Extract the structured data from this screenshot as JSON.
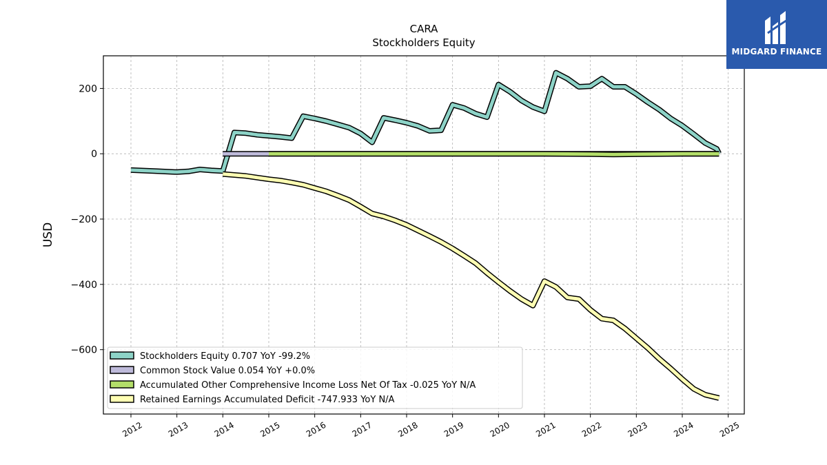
{
  "chart_data": {
    "type": "line",
    "title": "CARA",
    "subtitle": "Stockholders  Equity",
    "xlabel": "",
    "ylabel": "USD",
    "xlim": [
      2011.4,
      2025.35
    ],
    "ylim": [
      -797,
      300
    ],
    "yticks": [
      200,
      0,
      -200,
      -400,
      -600
    ],
    "ytick_labels": [
      "200",
      "0",
      "−200",
      "−400",
      "−600"
    ],
    "xticks": [
      2012,
      2013,
      2014,
      2015,
      2016,
      2017,
      2018,
      2019,
      2020,
      2021,
      2022,
      2023,
      2024,
      2025
    ],
    "xtick_labels": [
      "2012",
      "2013",
      "2014",
      "2015",
      "2016",
      "2017",
      "2018",
      "2019",
      "2020",
      "2021",
      "2022",
      "2023",
      "2024",
      "2025"
    ],
    "grid": true,
    "legend_position": "lower-left",
    "series": [
      {
        "name": "Stockholders Equity",
        "legend_label": "Stockholders Equity  0.707 YoY -99.2%",
        "color": "#8dd3c7",
        "points": [
          [
            2012.0,
            -50
          ],
          [
            2012.5,
            -53
          ],
          [
            2013.0,
            -56
          ],
          [
            2013.25,
            -54
          ],
          [
            2013.5,
            -48
          ],
          [
            2013.75,
            -51
          ],
          [
            2014.0,
            -53
          ],
          [
            2014.25,
            65
          ],
          [
            2014.5,
            63
          ],
          [
            2014.75,
            58
          ],
          [
            2015.0,
            55
          ],
          [
            2015.25,
            52
          ],
          [
            2015.5,
            48
          ],
          [
            2015.75,
            115
          ],
          [
            2016.0,
            108
          ],
          [
            2016.25,
            100
          ],
          [
            2016.5,
            90
          ],
          [
            2016.75,
            80
          ],
          [
            2017.0,
            62
          ],
          [
            2017.25,
            35
          ],
          [
            2017.5,
            110
          ],
          [
            2017.75,
            103
          ],
          [
            2018.0,
            95
          ],
          [
            2018.25,
            85
          ],
          [
            2018.5,
            70
          ],
          [
            2018.75,
            72
          ],
          [
            2019.0,
            150
          ],
          [
            2019.25,
            140
          ],
          [
            2019.5,
            123
          ],
          [
            2019.75,
            112
          ],
          [
            2020.0,
            212
          ],
          [
            2020.25,
            190
          ],
          [
            2020.5,
            163
          ],
          [
            2020.75,
            143
          ],
          [
            2021.0,
            130
          ],
          [
            2021.25,
            248
          ],
          [
            2021.5,
            230
          ],
          [
            2021.75,
            205
          ],
          [
            2022.0,
            207
          ],
          [
            2022.25,
            230
          ],
          [
            2022.5,
            205
          ],
          [
            2022.75,
            205
          ],
          [
            2023.0,
            183
          ],
          [
            2023.25,
            158
          ],
          [
            2023.5,
            135
          ],
          [
            2023.75,
            108
          ],
          [
            2024.0,
            86
          ],
          [
            2024.25,
            60
          ],
          [
            2024.5,
            33
          ],
          [
            2024.75,
            15
          ],
          [
            2024.8,
            0.707
          ]
        ]
      },
      {
        "name": "Common Stock Value",
        "legend_label": "Common Stock Value  0.054 YoY +0.0%",
        "color": "#bebada",
        "points": [
          [
            2014.0,
            0.054
          ],
          [
            2024.8,
            0.054
          ]
        ]
      },
      {
        "name": "Accumulated Other Comprehensive Income Loss Net Of Tax",
        "legend_label": "Accumulated Other Comprehensive Income Loss Net Of Tax  -0.025 YoY N/A",
        "color": "#b3de69",
        "points": [
          [
            2015.0,
            0
          ],
          [
            2019.0,
            0
          ],
          [
            2020.0,
            0
          ],
          [
            2021.0,
            -0.3
          ],
          [
            2022.0,
            -1
          ],
          [
            2022.5,
            -2
          ],
          [
            2023.0,
            -1.5
          ],
          [
            2023.5,
            -0.8
          ],
          [
            2024.0,
            -0.3
          ],
          [
            2024.8,
            -0.025
          ]
        ]
      },
      {
        "name": "Retained Earnings Accumulated Deficit",
        "legend_label": "Retained Earnings Accumulated Deficit  -747.933 YoY N/A",
        "color": "#ffffb3",
        "points": [
          [
            2014.0,
            -62
          ],
          [
            2014.25,
            -65
          ],
          [
            2014.5,
            -68
          ],
          [
            2014.75,
            -73
          ],
          [
            2015.0,
            -78
          ],
          [
            2015.25,
            -82
          ],
          [
            2015.5,
            -88
          ],
          [
            2015.75,
            -95
          ],
          [
            2016.0,
            -105
          ],
          [
            2016.25,
            -115
          ],
          [
            2016.5,
            -128
          ],
          [
            2016.75,
            -142
          ],
          [
            2017.0,
            -162
          ],
          [
            2017.25,
            -183
          ],
          [
            2017.5,
            -192
          ],
          [
            2017.75,
            -204
          ],
          [
            2018.0,
            -218
          ],
          [
            2018.25,
            -235
          ],
          [
            2018.5,
            -252
          ],
          [
            2018.75,
            -270
          ],
          [
            2019.0,
            -290
          ],
          [
            2019.25,
            -312
          ],
          [
            2019.5,
            -335
          ],
          [
            2019.75,
            -365
          ],
          [
            2020.0,
            -393
          ],
          [
            2020.25,
            -420
          ],
          [
            2020.5,
            -445
          ],
          [
            2020.75,
            -465
          ],
          [
            2021.0,
            -390
          ],
          [
            2021.25,
            -408
          ],
          [
            2021.5,
            -440
          ],
          [
            2021.75,
            -445
          ],
          [
            2022.0,
            -478
          ],
          [
            2022.25,
            -505
          ],
          [
            2022.5,
            -510
          ],
          [
            2022.75,
            -535
          ],
          [
            2023.0,
            -565
          ],
          [
            2023.25,
            -595
          ],
          [
            2023.5,
            -628
          ],
          [
            2023.75,
            -658
          ],
          [
            2024.0,
            -690
          ],
          [
            2024.25,
            -720
          ],
          [
            2024.5,
            -738
          ],
          [
            2024.8,
            -748
          ]
        ]
      }
    ]
  },
  "logo": {
    "text": "MIDGARD FINANCE",
    "color": "#2a5aad"
  }
}
